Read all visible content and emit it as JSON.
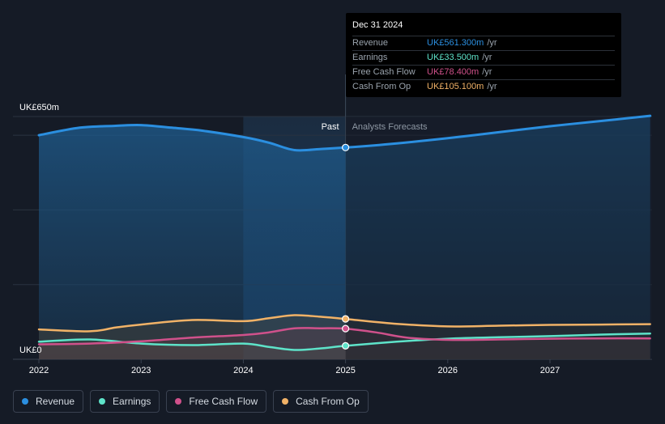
{
  "chart_data": {
    "type": "line",
    "y_top_label": "UK£650m",
    "y_bottom_label": "UK£0",
    "ylim": [
      0,
      650
    ],
    "xlim": [
      2021.74,
      2027.98
    ],
    "x_ticks": [
      "2022",
      "2023",
      "2024",
      "2025",
      "2026",
      "2027"
    ],
    "divider_x": 2025.0,
    "past_label": "Past",
    "forecast_label": "Analysts Forecasts",
    "series": [
      {
        "name": "Revenue",
        "color": "#2b8fe0",
        "points": [
          [
            2022.0,
            600
          ],
          [
            2022.4,
            620
          ],
          [
            2022.75,
            625
          ],
          [
            2023.0,
            627
          ],
          [
            2023.3,
            620
          ],
          [
            2023.6,
            612
          ],
          [
            2024.0,
            595
          ],
          [
            2024.25,
            580
          ],
          [
            2024.5,
            560
          ],
          [
            2024.75,
            563
          ],
          [
            2025.0,
            567
          ],
          [
            2025.5,
            578
          ],
          [
            2026.0,
            592
          ],
          [
            2026.5,
            608
          ],
          [
            2027.0,
            624
          ],
          [
            2027.5,
            638
          ],
          [
            2027.98,
            652
          ]
        ]
      },
      {
        "name": "Earnings",
        "color": "#5ee3c9",
        "points": [
          [
            2022.0,
            47
          ],
          [
            2022.5,
            53
          ],
          [
            2023.0,
            42
          ],
          [
            2023.5,
            38
          ],
          [
            2024.0,
            42
          ],
          [
            2024.25,
            33
          ],
          [
            2024.5,
            25
          ],
          [
            2024.75,
            29
          ],
          [
            2025.0,
            36
          ],
          [
            2025.5,
            47
          ],
          [
            2026.0,
            55
          ],
          [
            2026.5,
            59
          ],
          [
            2027.0,
            62
          ],
          [
            2027.5,
            66
          ],
          [
            2027.98,
            69
          ]
        ]
      },
      {
        "name": "Free Cash Flow",
        "color": "#d0518b",
        "points": [
          [
            2022.0,
            40
          ],
          [
            2022.5,
            42
          ],
          [
            2023.0,
            48
          ],
          [
            2023.5,
            58
          ],
          [
            2024.0,
            65
          ],
          [
            2024.25,
            72
          ],
          [
            2024.5,
            83
          ],
          [
            2024.75,
            83
          ],
          [
            2025.0,
            82
          ],
          [
            2025.3,
            72
          ],
          [
            2025.6,
            58
          ],
          [
            2026.0,
            52
          ],
          [
            2026.5,
            53
          ],
          [
            2027.0,
            55
          ],
          [
            2027.5,
            56
          ],
          [
            2027.98,
            56
          ]
        ]
      },
      {
        "name": "Cash From Op",
        "color": "#f1b267",
        "points": [
          [
            2022.0,
            80
          ],
          [
            2022.5,
            75
          ],
          [
            2022.75,
            85
          ],
          [
            2023.0,
            93
          ],
          [
            2023.5,
            105
          ],
          [
            2024.0,
            102
          ],
          [
            2024.25,
            110
          ],
          [
            2024.5,
            118
          ],
          [
            2024.75,
            114
          ],
          [
            2025.0,
            108
          ],
          [
            2025.5,
            95
          ],
          [
            2026.0,
            88
          ],
          [
            2026.5,
            90
          ],
          [
            2027.0,
            92
          ],
          [
            2027.5,
            93
          ],
          [
            2027.98,
            94
          ]
        ]
      }
    ]
  },
  "tooltip": {
    "date": "Dec 31 2024",
    "rows": [
      {
        "label": "Revenue",
        "value": "UK£561.300m",
        "unit": "/yr",
        "color": "#2b8fe0"
      },
      {
        "label": "Earnings",
        "value": "UK£33.500m",
        "unit": "/yr",
        "color": "#5ee3c9"
      },
      {
        "label": "Free Cash Flow",
        "value": "UK£78.400m",
        "unit": "/yr",
        "color": "#d0518b"
      },
      {
        "label": "Cash From Op",
        "value": "UK£105.100m",
        "unit": "/yr",
        "color": "#f1b267"
      }
    ]
  },
  "legend": [
    {
      "label": "Revenue",
      "color": "#2b8fe0"
    },
    {
      "label": "Earnings",
      "color": "#5ee3c9"
    },
    {
      "label": "Free Cash Flow",
      "color": "#d0518b"
    },
    {
      "label": "Cash From Op",
      "color": "#f1b267"
    }
  ]
}
